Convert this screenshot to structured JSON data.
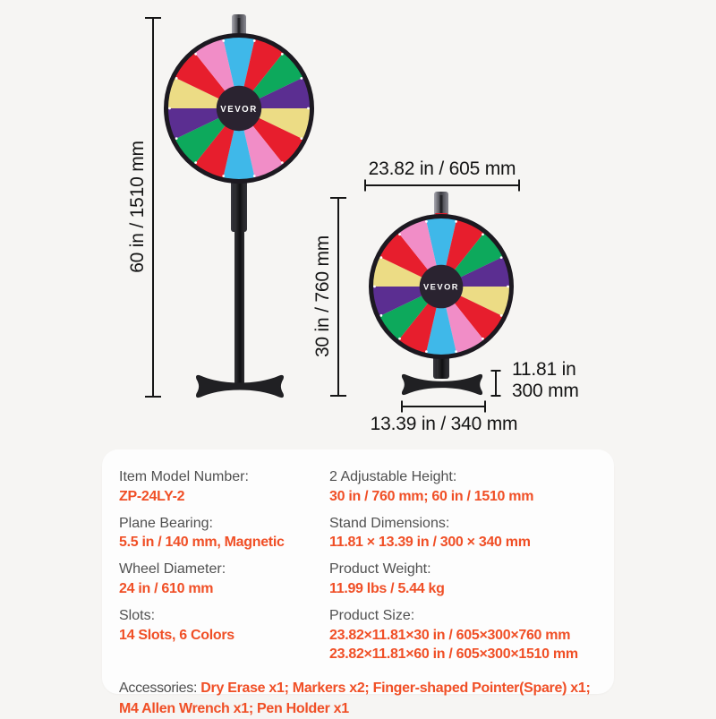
{
  "page": {
    "background": "#f6f5f3",
    "card_background": "#fdfdfd",
    "accent": "#f04f26"
  },
  "wheel": {
    "hub_label": "VEVOR",
    "hub_color": "#2a2330",
    "rim_color": "#1c1920",
    "peg_color": "#ffffff",
    "colors": {
      "red": "#e71e2d",
      "blue": "#3fb8e9",
      "pink": "#f18dc7",
      "green": "#0da95c",
      "purple": "#5b2e91",
      "yellow": "#ecdc85"
    },
    "segments": [
      "blue",
      "red",
      "green",
      "purple",
      "yellow",
      "red",
      "pink",
      "blue",
      "red",
      "green",
      "purple",
      "yellow",
      "red",
      "pink"
    ]
  },
  "dimensions": {
    "tall_height": "60 in / 1510 mm",
    "wheel_width": "23.82 in / 605 mm",
    "short_height": "30 in / 760 mm",
    "base_height_line1": "11.81 in",
    "base_height_line2": "300 mm",
    "base_width": "13.39 in / 340 mm"
  },
  "specs": {
    "rows": [
      {
        "label": "Item Model Number:",
        "value": "ZP-24LY-2"
      },
      {
        "label": "2 Adjustable Height:",
        "value": "30 in / 760 mm; 60 in / 1510 mm"
      },
      {
        "label": "Plane Bearing:",
        "value": "5.5 in / 140 mm, Magnetic"
      },
      {
        "label": "Stand Dimensions:",
        "value": "11.81 × 13.39 in / 300 × 340 mm"
      },
      {
        "label": "Wheel Diameter:",
        "value": "24 in / 610 mm"
      },
      {
        "label": "Product Weight:",
        "value": "11.99 lbs / 5.44 kg"
      },
      {
        "label": "Slots:",
        "value": "14 Slots, 6 Colors"
      },
      {
        "label": "Product Size:",
        "values": [
          "23.82×11.81×30 in / 605×300×760 mm",
          "23.82×11.81×60 in / 605×300×1510 mm"
        ]
      }
    ],
    "accessories_label": "Accessories:",
    "accessories_value": "Dry Erase x1; Markers x2; Finger-shaped Pointer(Spare) x1; M4 Allen Wrench x1; Pen Holder x1"
  }
}
